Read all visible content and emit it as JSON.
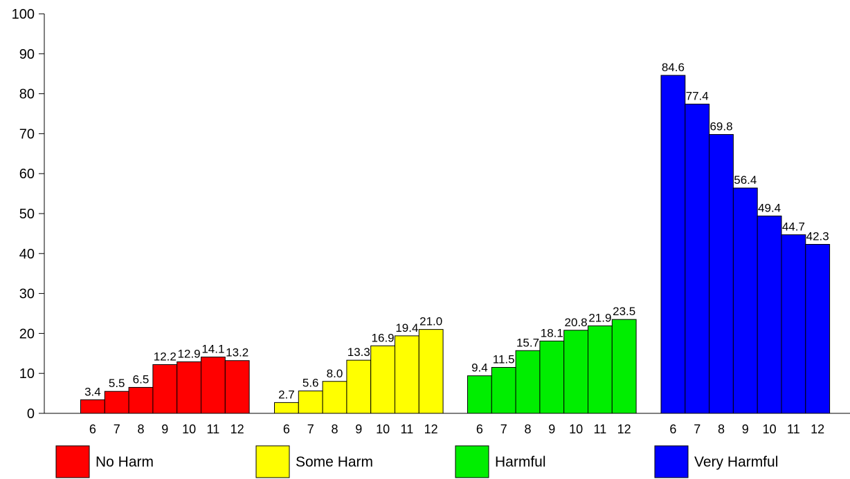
{
  "chart_data": {
    "type": "bar",
    "title": "",
    "xlabel": "",
    "ylabel": "",
    "ylim": [
      0,
      100
    ],
    "yticks": [
      0,
      10,
      20,
      30,
      40,
      50,
      60,
      70,
      80,
      90,
      100
    ],
    "categories": [
      "6",
      "7",
      "8",
      "9",
      "10",
      "11",
      "12"
    ],
    "legend_position": "bottom",
    "grid": false,
    "series": [
      {
        "name": "No Harm",
        "color": "#ff0000",
        "values": [
          3.4,
          5.5,
          6.5,
          12.2,
          12.9,
          14.1,
          13.2
        ],
        "labels": [
          "3.4",
          "5.5",
          "6.5",
          "12.2",
          "12.9",
          "14.1",
          "13.2"
        ]
      },
      {
        "name": "Some Harm",
        "color": "#ffff00",
        "values": [
          2.7,
          5.6,
          8.0,
          13.3,
          16.9,
          19.4,
          21.0
        ],
        "labels": [
          "2.7",
          "5.6",
          "8.0",
          "13.3",
          "16.9",
          "19.4",
          "21.0"
        ]
      },
      {
        "name": "Harmful",
        "color": "#00ee00",
        "values": [
          9.4,
          11.5,
          15.7,
          18.1,
          20.8,
          21.9,
          23.5
        ],
        "labels": [
          "9.4",
          "11.5",
          "15.7",
          "18.1",
          "20.8",
          "21.9",
          "23.5"
        ]
      },
      {
        "name": "Very Harmful",
        "color": "#0000ff",
        "values": [
          84.6,
          77.4,
          69.8,
          56.4,
          49.4,
          44.7,
          42.3
        ],
        "labels": [
          "84.6",
          "77.4",
          "69.8",
          "56.4",
          "49.4",
          "44.7",
          "42.3"
        ]
      }
    ]
  }
}
